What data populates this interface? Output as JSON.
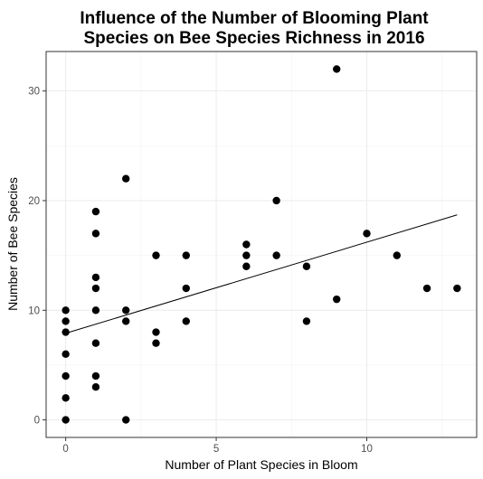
{
  "chart_data": {
    "type": "scatter",
    "title_lines": [
      "Influence of the Number of Blooming Plant",
      "Species on Bee Species Richness in 2016"
    ],
    "xlabel": "Number of Plant Species in Bloom",
    "ylabel": "Number of Bee Species",
    "xlim": [
      -0.65,
      13.65
    ],
    "ylim": [
      -1.6,
      33.6
    ],
    "x_ticks": [
      0,
      5,
      10
    ],
    "y_ticks": [
      0,
      10,
      20,
      30
    ],
    "grid": true,
    "legend": "none",
    "colors": {
      "points": "#000000",
      "fit_line": "#000000",
      "grid_major": "#ebebeb",
      "grid_minor": "#f5f5f5",
      "panel_border": "#333333"
    },
    "points": [
      {
        "x": 0,
        "y": 0
      },
      {
        "x": 0,
        "y": 2
      },
      {
        "x": 0,
        "y": 4
      },
      {
        "x": 0,
        "y": 6
      },
      {
        "x": 0,
        "y": 8
      },
      {
        "x": 0,
        "y": 9
      },
      {
        "x": 0,
        "y": 10
      },
      {
        "x": 1,
        "y": 3
      },
      {
        "x": 1,
        "y": 4
      },
      {
        "x": 1,
        "y": 7
      },
      {
        "x": 1,
        "y": 10
      },
      {
        "x": 1,
        "y": 12
      },
      {
        "x": 1,
        "y": 13
      },
      {
        "x": 1,
        "y": 17
      },
      {
        "x": 1,
        "y": 19
      },
      {
        "x": 2,
        "y": 0
      },
      {
        "x": 2,
        "y": 9
      },
      {
        "x": 2,
        "y": 10
      },
      {
        "x": 2,
        "y": 22
      },
      {
        "x": 3,
        "y": 7
      },
      {
        "x": 3,
        "y": 8
      },
      {
        "x": 3,
        "y": 15
      },
      {
        "x": 4,
        "y": 9
      },
      {
        "x": 4,
        "y": 12
      },
      {
        "x": 4,
        "y": 15
      },
      {
        "x": 6,
        "y": 14
      },
      {
        "x": 6,
        "y": 15
      },
      {
        "x": 6,
        "y": 16
      },
      {
        "x": 7,
        "y": 15
      },
      {
        "x": 7,
        "y": 20
      },
      {
        "x": 8,
        "y": 9
      },
      {
        "x": 8,
        "y": 14
      },
      {
        "x": 9,
        "y": 11
      },
      {
        "x": 9,
        "y": 32
      },
      {
        "x": 10,
        "y": 17
      },
      {
        "x": 11,
        "y": 15
      },
      {
        "x": 12,
        "y": 12
      },
      {
        "x": 13,
        "y": 12
      }
    ],
    "fit_line": {
      "x": [
        0,
        13
      ],
      "y": [
        7.9,
        18.7
      ]
    }
  }
}
